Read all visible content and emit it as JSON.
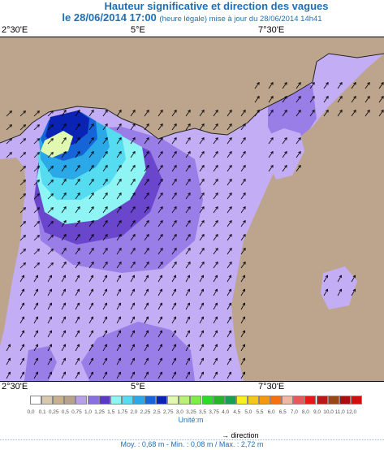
{
  "header": {
    "title": "Hauteur significative et direction des vagues",
    "date_line": "le 28/06/2014 17:00",
    "update_note": "(heure légale) mise à jour du 28/06/2014 14h41"
  },
  "axis": {
    "top_ticks": [
      "2°30'E",
      "5°E",
      "7°30'E"
    ],
    "bottom_ticks": [
      "2°30'E",
      "5°E",
      "7°30'E"
    ]
  },
  "legend": {
    "labels": [
      "0,0",
      "0,1",
      "0,25",
      "0,5",
      "0,75",
      "1,0",
      "1,25",
      "1,5",
      "1,75",
      "2,0",
      "2,25",
      "2,5",
      "2,75",
      "3,0",
      "3,25",
      "3,5",
      "3,75",
      "4,0",
      "4,5",
      "5,0",
      "5,5",
      "6,0",
      "6,5",
      "7,0",
      "8,0",
      "9,0",
      "10,0",
      "11,0",
      "12,0"
    ],
    "colors": [
      "#ffffff",
      "#d8c8b0",
      "#c9b08c",
      "#b7a38c",
      "#b7a0e6",
      "#8a6fe0",
      "#5a38c8",
      "#8ef4f4",
      "#56dcf0",
      "#2aa8e8",
      "#1565d8",
      "#0a23b4",
      "#e0f8b0",
      "#b8f078",
      "#7cf040",
      "#2adc28",
      "#28b428",
      "#18a050",
      "#f8f020",
      "#f4c818",
      "#f49810",
      "#f47010",
      "#f0b8a0",
      "#e85858",
      "#e81818",
      "#b81818",
      "#984818",
      "#a81010",
      "#d01010"
    ],
    "unit": "Unité:m"
  },
  "footer": {
    "direction_label": "direction",
    "stats": "Moy. : 0,68 m  -  Min. : 0,08 m / Max. : 2,72 m"
  },
  "map": {
    "land_color": "#bca58c",
    "sea_low_color": "#c3adf5",
    "sea_mid_color": "#9a7ee8",
    "sea_high_color": "#6a46cc",
    "arrow_color": "#000000"
  }
}
